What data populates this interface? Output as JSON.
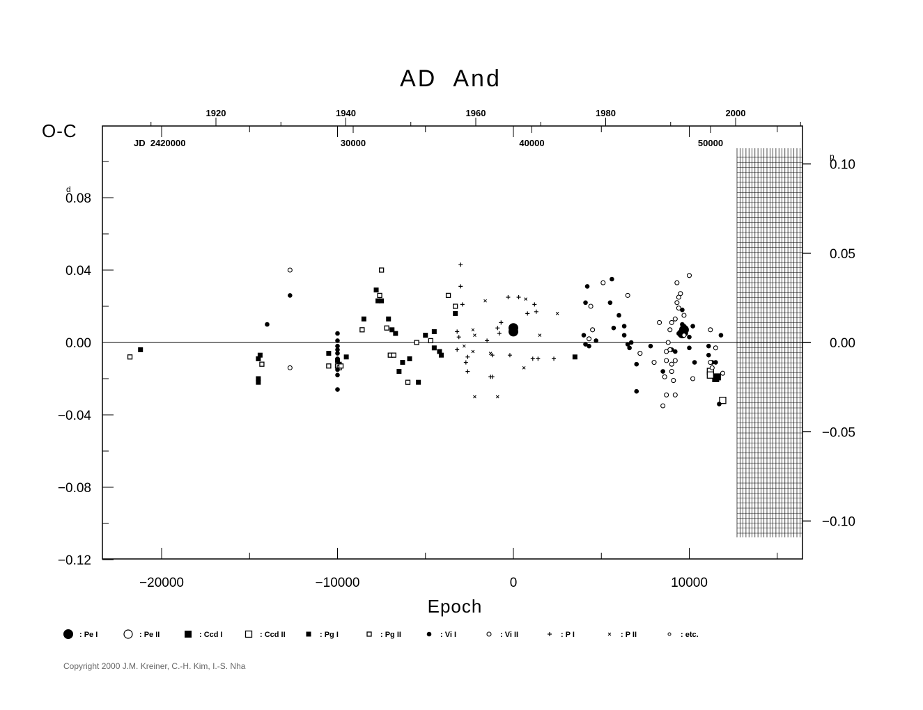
{
  "chart_data": {
    "type": "scatter",
    "title": "AD  And",
    "ylabel": "O-C",
    "xlabel": "Epoch",
    "y_unit_left": "d",
    "y_unit_right": "p",
    "xlim": [
      -23000,
      16500
    ],
    "ylim": [
      -0.12,
      0.12
    ],
    "x_ticks": [
      -20000,
      -10000,
      0,
      10000
    ],
    "x_tick_labels": [
      "−20000",
      "−10000",
      "0",
      "10000"
    ],
    "y_ticks": [
      -0.12,
      -0.08,
      -0.04,
      0.0,
      0.04,
      0.08
    ],
    "y_tick_labels": [
      "−0.12",
      "−0.08",
      "−0.04",
      "0.00",
      "0.04",
      "0.08"
    ],
    "y_right_ticks": [
      -0.1,
      -0.05,
      0.0,
      0.05,
      0.1
    ],
    "y_right_tick_labels": [
      "−0.10",
      "−0.05",
      "0.00",
      "0.05",
      "0.10"
    ],
    "top_year_ticks": [
      1920,
      1940,
      1960,
      1980,
      2000
    ],
    "top_year_labels": [
      "1920",
      "1940",
      "1960",
      "1980",
      "2000"
    ],
    "jd_prefix": "JD  2420000",
    "top_jd_ticks": [
      30000,
      40000,
      50000
    ],
    "top_jd_labels": [
      "30000",
      "40000",
      "50000"
    ],
    "copyright": "Copyright 2000 J.M. Kreiner, C.-H. Kim, I.-S. Nha",
    "legend": [
      {
        "symbol": "pe1",
        "label": ": Pe  I"
      },
      {
        "symbol": "pe2",
        "label": ": Pe  II"
      },
      {
        "symbol": "ccd1",
        "label": ": Ccd  I"
      },
      {
        "symbol": "ccd2",
        "label": ": Ccd  II"
      },
      {
        "symbol": "pg1",
        "label": ": Pg  I"
      },
      {
        "symbol": "pg2",
        "label": ": Pg  II"
      },
      {
        "symbol": "vi1",
        "label": ": Vi  I"
      },
      {
        "symbol": "vi2",
        "label": ": Vi  II"
      },
      {
        "symbol": "p1",
        "label": ": P  I"
      },
      {
        "symbol": "p2",
        "label": ": P  II"
      },
      {
        "symbol": "etc",
        "label": ": etc."
      }
    ],
    "series": [
      {
        "symbol": "pe1",
        "points": [
          [
            0,
            0.008
          ],
          [
            0,
            0.006
          ],
          [
            9700,
            0.007
          ],
          [
            9600,
            0.005
          ]
        ]
      },
      {
        "symbol": "pe2",
        "points": []
      },
      {
        "symbol": "ccd1",
        "points": [
          [
            11600,
            -0.019
          ],
          [
            11500,
            -0.02
          ]
        ]
      },
      {
        "symbol": "ccd2",
        "points": [
          [
            11200,
            -0.016
          ],
          [
            11200,
            -0.018
          ],
          [
            11900,
            -0.032
          ]
        ]
      },
      {
        "symbol": "pg1",
        "points": [
          [
            -21200,
            -0.004
          ],
          [
            -14500,
            -0.009
          ],
          [
            -14400,
            -0.007
          ],
          [
            -14500,
            -0.02
          ],
          [
            -14500,
            -0.022
          ],
          [
            -10500,
            -0.006
          ],
          [
            -10000,
            -0.01
          ],
          [
            -9950,
            -0.013
          ],
          [
            -9900,
            -0.012
          ],
          [
            -9500,
            -0.008
          ],
          [
            -8500,
            0.013
          ],
          [
            -7700,
            0.023
          ],
          [
            -7800,
            0.029
          ],
          [
            -7500,
            0.023
          ],
          [
            -7100,
            0.013
          ],
          [
            -6900,
            0.007
          ],
          [
            -6700,
            0.005
          ],
          [
            -6500,
            -0.016
          ],
          [
            -6300,
            -0.011
          ],
          [
            -5900,
            -0.009
          ],
          [
            -5400,
            -0.022
          ],
          [
            -5000,
            0.004
          ],
          [
            -4500,
            0.006
          ],
          [
            -4500,
            -0.003
          ],
          [
            -4200,
            -0.005
          ],
          [
            -4100,
            -0.007
          ],
          [
            -3300,
            0.016
          ],
          [
            3500,
            -0.008
          ]
        ]
      },
      {
        "symbol": "pg2",
        "points": [
          [
            -21800,
            -0.008
          ],
          [
            -14300,
            -0.012
          ],
          [
            -10500,
            -0.013
          ],
          [
            -10000,
            -0.013
          ],
          [
            -9900,
            -0.014
          ],
          [
            -9800,
            -0.013
          ],
          [
            -8600,
            0.007
          ],
          [
            -7600,
            0.026
          ],
          [
            -7500,
            0.04
          ],
          [
            -7200,
            0.008
          ],
          [
            -7000,
            -0.007
          ],
          [
            -6800,
            -0.007
          ],
          [
            -6000,
            -0.022
          ],
          [
            -5500,
            0.0
          ],
          [
            -4700,
            0.001
          ],
          [
            -3700,
            0.026
          ],
          [
            -3300,
            0.02
          ]
        ]
      },
      {
        "symbol": "vi1",
        "points": [
          [
            -14000,
            0.01
          ],
          [
            -12700,
            0.026
          ],
          [
            -10000,
            0.005
          ],
          [
            -10000,
            0.001
          ],
          [
            -10000,
            -0.002
          ],
          [
            -10000,
            -0.004
          ],
          [
            -10000,
            -0.006
          ],
          [
            -10000,
            -0.009
          ],
          [
            -10000,
            -0.015
          ],
          [
            -10000,
            -0.018
          ],
          [
            -10000,
            -0.026
          ],
          [
            4200,
            0.031
          ],
          [
            4100,
            0.022
          ],
          [
            4000,
            0.004
          ],
          [
            4100,
            -0.001
          ],
          [
            4300,
            -0.002
          ],
          [
            4700,
            0.001
          ],
          [
            5500,
            0.022
          ],
          [
            5600,
            0.035
          ],
          [
            5700,
            0.008
          ],
          [
            6000,
            0.015
          ],
          [
            6300,
            0.009
          ],
          [
            6300,
            0.004
          ],
          [
            6500,
            -0.001
          ],
          [
            6600,
            -0.003
          ],
          [
            6700,
            0.0
          ],
          [
            7000,
            -0.012
          ],
          [
            7000,
            -0.027
          ],
          [
            7800,
            -0.002
          ],
          [
            8500,
            -0.016
          ],
          [
            9000,
            -0.004
          ],
          [
            9200,
            -0.005
          ],
          [
            9400,
            0.005
          ],
          [
            9600,
            0.018
          ],
          [
            9600,
            0.01
          ],
          [
            9700,
            0.009
          ],
          [
            9800,
            0.005
          ],
          [
            10000,
            0.003
          ],
          [
            10000,
            -0.003
          ],
          [
            10200,
            0.009
          ],
          [
            10300,
            -0.011
          ],
          [
            11100,
            -0.002
          ],
          [
            11100,
            -0.007
          ],
          [
            11300,
            -0.011
          ],
          [
            11500,
            -0.011
          ],
          [
            11700,
            -0.034
          ],
          [
            11800,
            0.004
          ]
        ]
      },
      {
        "symbol": "vi2",
        "points": [
          [
            -12700,
            0.04
          ],
          [
            -12700,
            -0.014
          ],
          [
            4400,
            0.02
          ],
          [
            4500,
            0.007
          ],
          [
            4300,
            0.002
          ],
          [
            5100,
            0.033
          ],
          [
            6500,
            0.026
          ],
          [
            7200,
            -0.006
          ],
          [
            8000,
            -0.011
          ],
          [
            8300,
            0.011
          ],
          [
            8500,
            -0.035
          ],
          [
            8600,
            -0.019
          ],
          [
            8700,
            -0.029
          ],
          [
            8700,
            -0.005
          ],
          [
            8700,
            -0.01
          ],
          [
            8800,
            0.0
          ],
          [
            8900,
            0.007
          ],
          [
            8900,
            -0.004
          ],
          [
            9000,
            0.011
          ],
          [
            9000,
            -0.012
          ],
          [
            9000,
            -0.016
          ],
          [
            9100,
            -0.021
          ],
          [
            9200,
            -0.01
          ],
          [
            9200,
            0.013
          ],
          [
            9200,
            -0.029
          ],
          [
            9300,
            0.033
          ],
          [
            9300,
            0.022
          ],
          [
            9400,
            0.025
          ],
          [
            9400,
            0.019
          ],
          [
            9500,
            0.027
          ],
          [
            9700,
            0.015
          ],
          [
            9700,
            0.004
          ],
          [
            10000,
            0.037
          ],
          [
            10200,
            -0.02
          ],
          [
            11200,
            0.007
          ],
          [
            11200,
            -0.011
          ],
          [
            11300,
            -0.014
          ],
          [
            11500,
            -0.003
          ],
          [
            11900,
            -0.017
          ]
        ]
      },
      {
        "symbol": "p1",
        "points": [
          [
            -3000,
            0.043
          ],
          [
            -3000,
            0.031
          ],
          [
            -2900,
            0.021
          ],
          [
            -3200,
            0.006
          ],
          [
            -3100,
            0.003
          ],
          [
            -3200,
            -0.004
          ],
          [
            -2600,
            -0.008
          ],
          [
            -2700,
            -0.011
          ],
          [
            -2600,
            -0.016
          ],
          [
            -1200,
            -0.007
          ],
          [
            -1300,
            -0.019
          ],
          [
            -1200,
            -0.019
          ],
          [
            -1500,
            0.001
          ],
          [
            -900,
            0.008
          ],
          [
            -700,
            0.011
          ],
          [
            -800,
            0.005
          ],
          [
            -300,
            0.025
          ],
          [
            300,
            0.025
          ],
          [
            800,
            0.016
          ],
          [
            1200,
            0.021
          ],
          [
            1300,
            0.017
          ],
          [
            1100,
            -0.009
          ],
          [
            1400,
            -0.009
          ],
          [
            -200,
            -0.007
          ],
          [
            2300,
            -0.009
          ]
        ]
      },
      {
        "symbol": "p2",
        "points": [
          [
            -2300,
            0.007
          ],
          [
            -2200,
            0.004
          ],
          [
            -2200,
            -0.03
          ],
          [
            -2300,
            -0.005
          ],
          [
            -1600,
            0.023
          ],
          [
            -1300,
            -0.006
          ],
          [
            -900,
            -0.03
          ],
          [
            700,
            0.024
          ],
          [
            600,
            -0.014
          ],
          [
            1500,
            0.004
          ],
          [
            2500,
            0.016
          ],
          [
            -2800,
            -0.002
          ]
        ]
      },
      {
        "symbol": "etc",
        "points": []
      }
    ]
  }
}
